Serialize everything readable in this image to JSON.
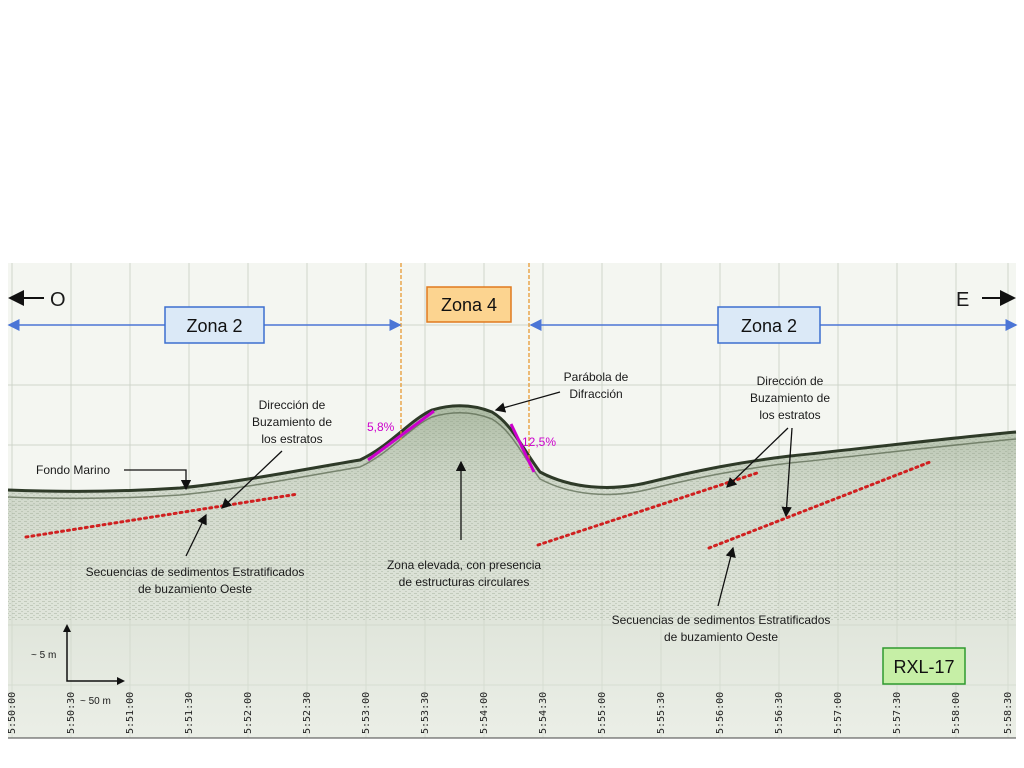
{
  "directions": {
    "west": "O",
    "east": "E"
  },
  "zones": {
    "left": "Zona 2",
    "center": "Zona 4",
    "right": "Zona 2"
  },
  "slopes": {
    "left": "5,8%",
    "right": "12,5%"
  },
  "labels": {
    "parabola": [
      "Parábola de",
      "Difracción"
    ],
    "dip_left": [
      "Dirección de",
      "Buzamiento de",
      "los estratos"
    ],
    "dip_right": [
      "Dirección de",
      "Buzamiento de",
      "los estratos"
    ],
    "seafloor": "Fondo Marino",
    "seq_left": [
      "Secuencias de sedimentos Estratificados",
      "de buzamiento Oeste"
    ],
    "seq_right": [
      "Secuencias de sedimentos Estratificados",
      "de buzamiento Oeste"
    ],
    "elevated": [
      "Zona elevada, con presencia",
      "de estructuras circulares"
    ]
  },
  "scale": {
    "vertical": "~ 5 m",
    "horizontal": "~ 50 m"
  },
  "profile_id": "RXL-17",
  "time_ticks": [
    "5:50:00",
    "5:50:30",
    "5:51:00",
    "5:51:30",
    "5:52:00",
    "5:52:30",
    "5:53:00",
    "5:53:30",
    "5:54:00",
    "5:54:30",
    "5:55:00",
    "5:55:30",
    "5:56:00",
    "5:56:30",
    "5:57:00",
    "5:57:30",
    "5:58:00",
    "5:58:30"
  ],
  "colors": {
    "zone2_box": "#dbe9f7",
    "zone2_border": "#3c6fcf",
    "zone4_box": "#fcd490",
    "zone4_border": "#e07a1f",
    "rxl_box": "#c6efa6",
    "rxl_border": "#2f9a2f",
    "slope_line": "#cc00cc",
    "strata_dots": "#d02020",
    "zone_divider": "#e79a33",
    "arrow_blue": "#4b75d6"
  }
}
